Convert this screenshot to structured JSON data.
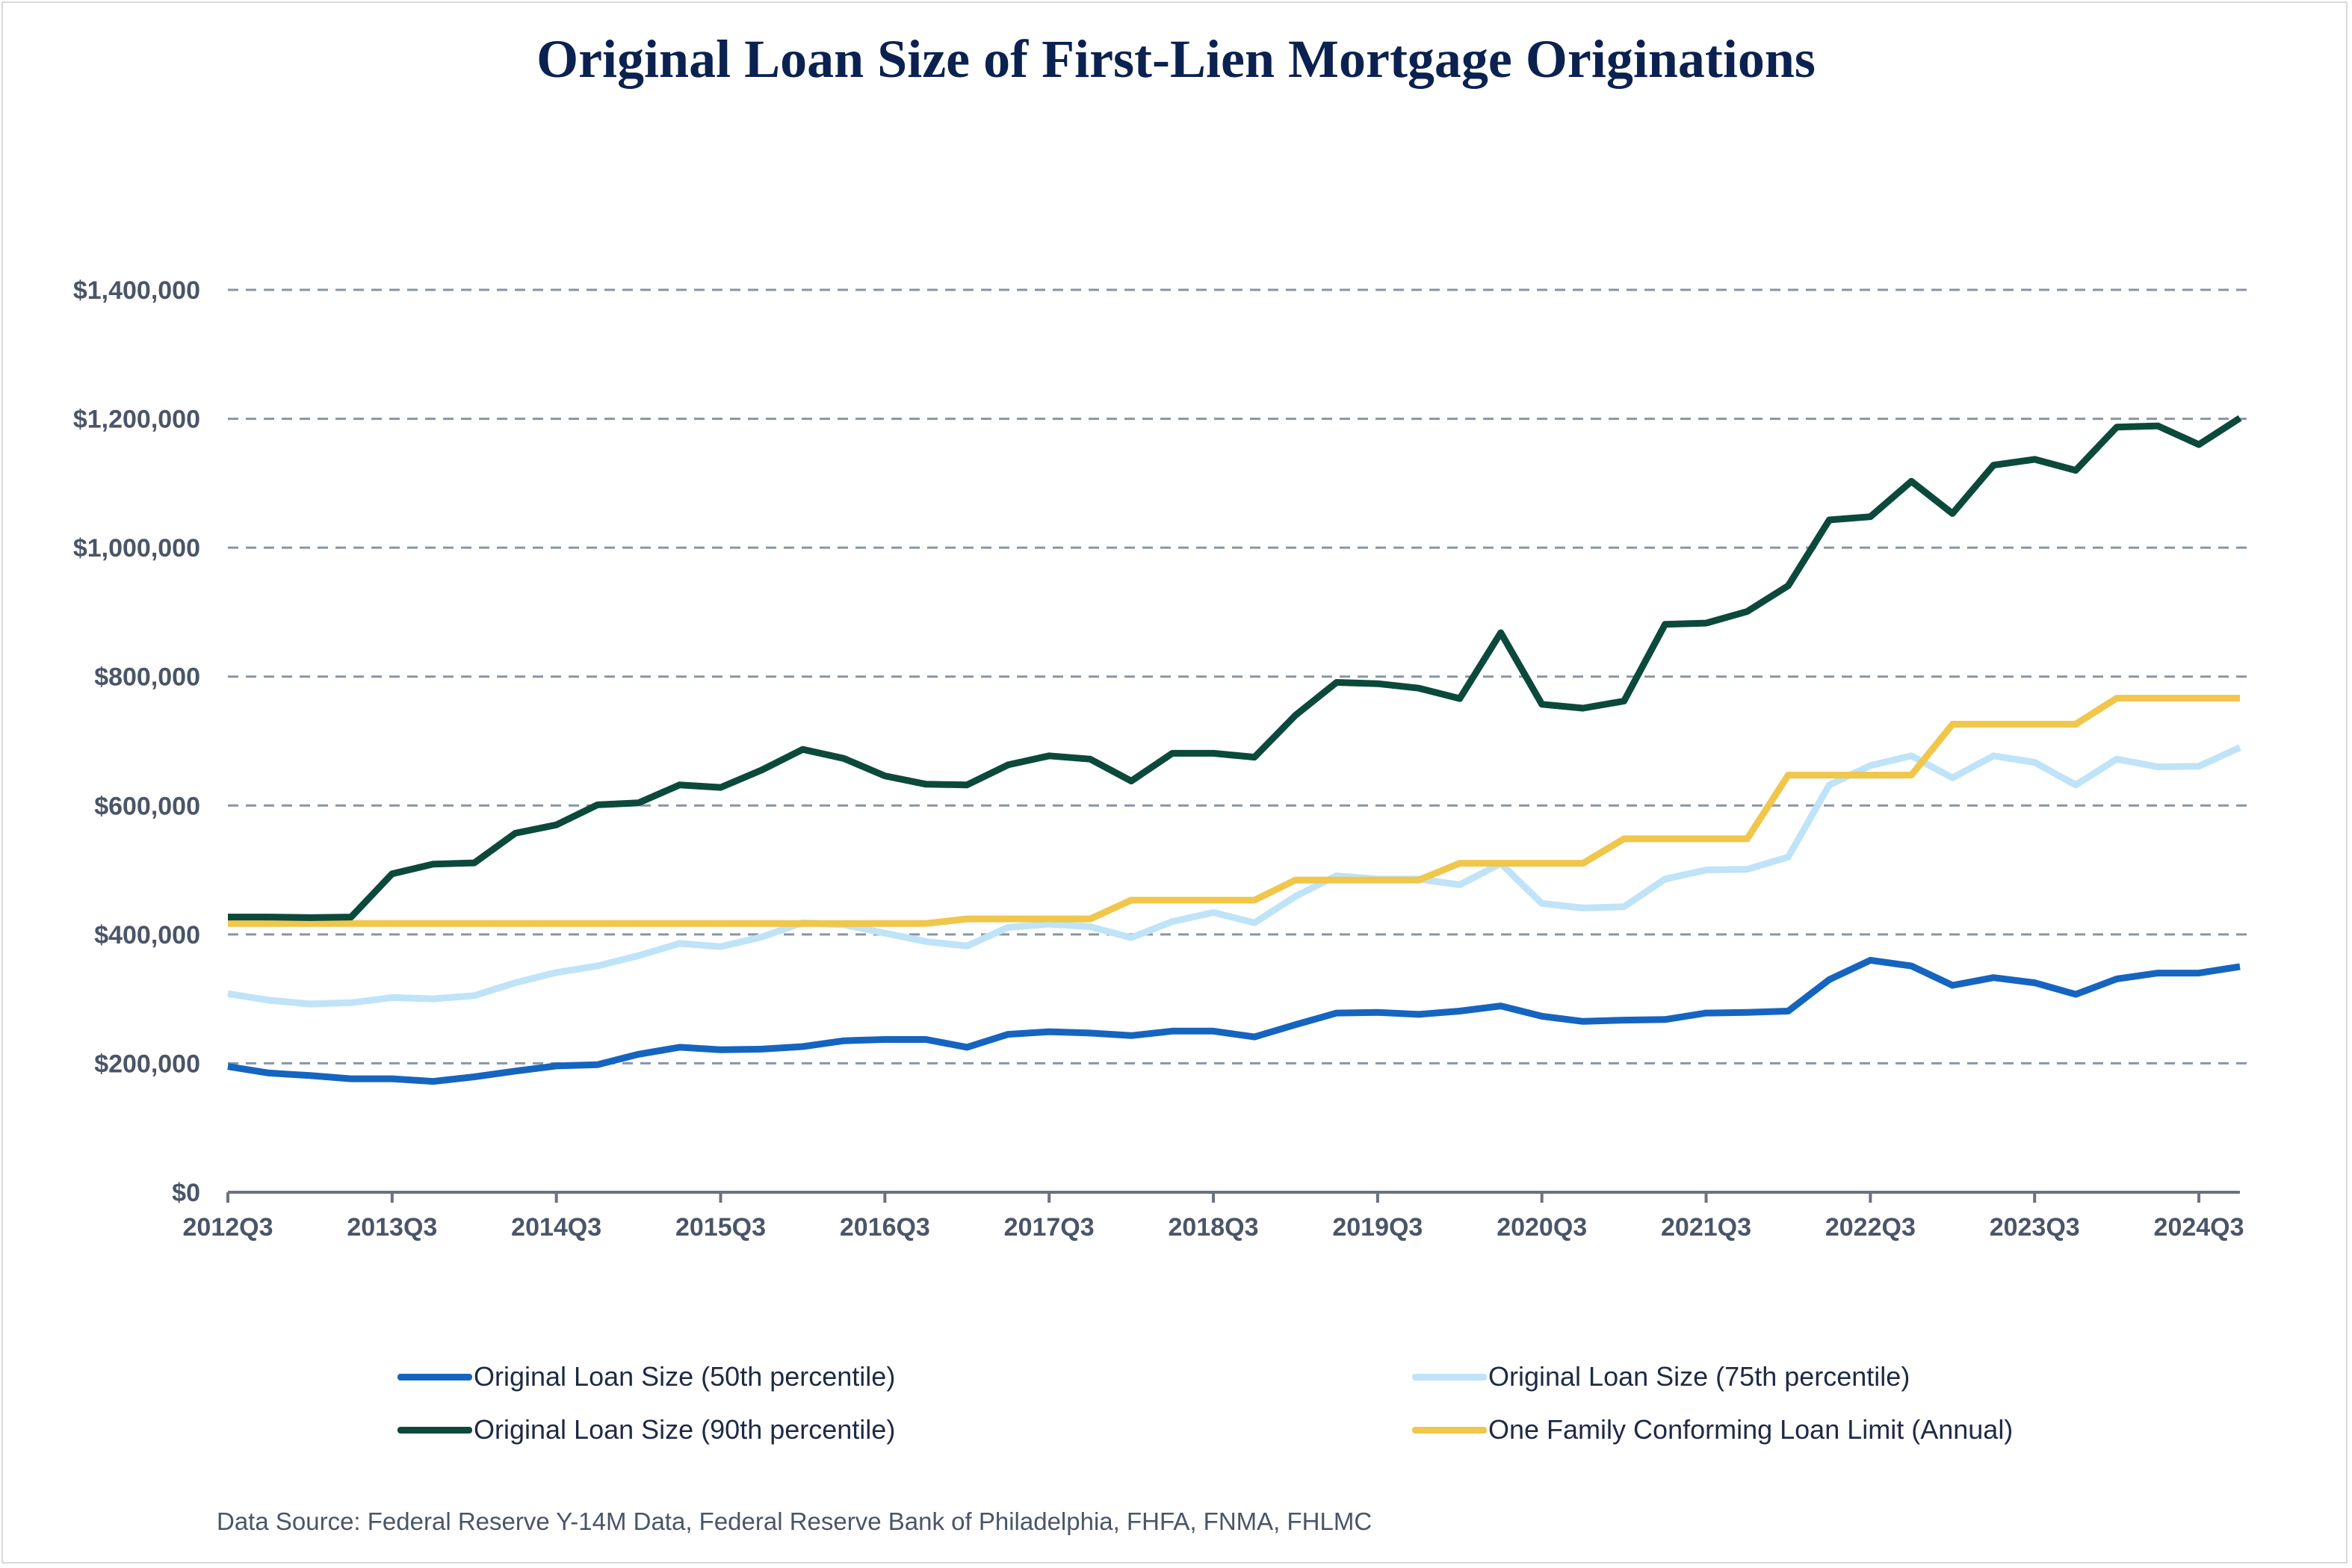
{
  "chart_data": {
    "type": "line",
    "title": "Original Loan Size of First-Lien Mortgage Originations",
    "source": "Data Source: Federal Reserve Y-14M Data, Federal Reserve Bank of Philadelphia, FHFA, FNMA, FHLMC",
    "xlabel": "",
    "ylabel": "",
    "ylim": [
      0,
      1400000
    ],
    "y_ticks": [
      0,
      200000,
      400000,
      600000,
      800000,
      1000000,
      1200000,
      1400000
    ],
    "y_tick_labels": [
      "$0",
      "$200,000",
      "$400,000",
      "$600,000",
      "$800,000",
      "$1,000,000",
      "$1,200,000",
      "$1,400,000"
    ],
    "grid": "horizontal dashed",
    "legend_position": "bottom",
    "x": [
      "2012Q3",
      "2012Q4",
      "2013Q1",
      "2013Q2",
      "2013Q3",
      "2013Q4",
      "2014Q1",
      "2014Q2",
      "2014Q3",
      "2014Q4",
      "2015Q1",
      "2015Q2",
      "2015Q3",
      "2015Q4",
      "2016Q1",
      "2016Q2",
      "2016Q3",
      "2016Q4",
      "2017Q1",
      "2017Q2",
      "2017Q3",
      "2017Q4",
      "2018Q1",
      "2018Q2",
      "2018Q3",
      "2018Q4",
      "2019Q1",
      "2019Q2",
      "2019Q3",
      "2019Q4",
      "2020Q1",
      "2020Q2",
      "2020Q3",
      "2020Q4",
      "2021Q1",
      "2021Q2",
      "2021Q3",
      "2021Q4",
      "2022Q1",
      "2022Q2",
      "2022Q3",
      "2022Q4",
      "2023Q1",
      "2023Q2",
      "2023Q3",
      "2023Q4",
      "2024Q1",
      "2024Q2",
      "2024Q3",
      "2024Q4"
    ],
    "x_tick_labels": [
      "2012Q3",
      "2013Q3",
      "2014Q3",
      "2015Q3",
      "2016Q3",
      "2017Q3",
      "2018Q3",
      "2019Q3",
      "2020Q3",
      "2021Q3",
      "2022Q3",
      "2023Q3",
      "2024Q3"
    ],
    "series": [
      {
        "name": "Original Loan Size (50th percentile)",
        "color": "#1565c0",
        "values": [
          195000,
          185000,
          181000,
          176000,
          176000,
          172000,
          179000,
          188000,
          196000,
          198000,
          214000,
          225000,
          221000,
          222000,
          226000,
          235000,
          237000,
          237000,
          225000,
          245000,
          249000,
          247000,
          243000,
          250000,
          250000,
          241000,
          260000,
          278000,
          279000,
          276000,
          281000,
          289000,
          273000,
          265000,
          267000,
          268000,
          278000,
          279000,
          281000,
          330000,
          360000,
          351000,
          321000,
          333000,
          325000,
          307000,
          331000,
          340000,
          340000,
          350000
        ]
      },
      {
        "name": "Original Loan Size (75th percentile)",
        "color": "#bfe3f8",
        "values": [
          308000,
          298000,
          292000,
          294000,
          302000,
          300000,
          305000,
          325000,
          341000,
          351000,
          367000,
          386000,
          381000,
          396000,
          418000,
          415000,
          402000,
          389000,
          382000,
          411000,
          416000,
          412000,
          395000,
          420000,
          434000,
          418000,
          459000,
          491000,
          486000,
          486000,
          477000,
          510000,
          448000,
          441000,
          443000,
          486000,
          500000,
          501000,
          520000,
          632000,
          662000,
          677000,
          643000,
          677000,
          667000,
          632000,
          672000,
          660000,
          661000,
          690000
        ]
      },
      {
        "name": "Original Loan Size (90th percentile)",
        "color": "#0b4a3b",
        "values": [
          427000,
          427000,
          426000,
          427000,
          494000,
          509000,
          511000,
          557000,
          570000,
          601000,
          604000,
          632000,
          628000,
          655000,
          687000,
          673000,
          646000,
          633000,
          632000,
          663000,
          677000,
          672000,
          638000,
          681000,
          681000,
          675000,
          740000,
          791000,
          789000,
          782000,
          766000,
          868000,
          757000,
          751000,
          762000,
          881000,
          883000,
          901000,
          941000,
          1043000,
          1048000,
          1103000,
          1053000,
          1128000,
          1137000,
          1120000,
          1187000,
          1189000,
          1160000,
          1201000
        ]
      },
      {
        "name": "One Family Conforming Loan Limit (Annual)",
        "color": "#f0c64b",
        "values": [
          417000,
          417000,
          417000,
          417000,
          417000,
          417000,
          417000,
          417000,
          417000,
          417000,
          417000,
          417000,
          417000,
          417000,
          417000,
          417000,
          417000,
          417000,
          424100,
          424100,
          424100,
          424100,
          453100,
          453100,
          453100,
          453100,
          484350,
          484350,
          484350,
          484350,
          510400,
          510400,
          510400,
          510400,
          548250,
          548250,
          548250,
          548250,
          647200,
          647200,
          647200,
          647200,
          726200,
          726200,
          726200,
          726200,
          766550,
          766550,
          766550,
          766550
        ]
      }
    ]
  }
}
